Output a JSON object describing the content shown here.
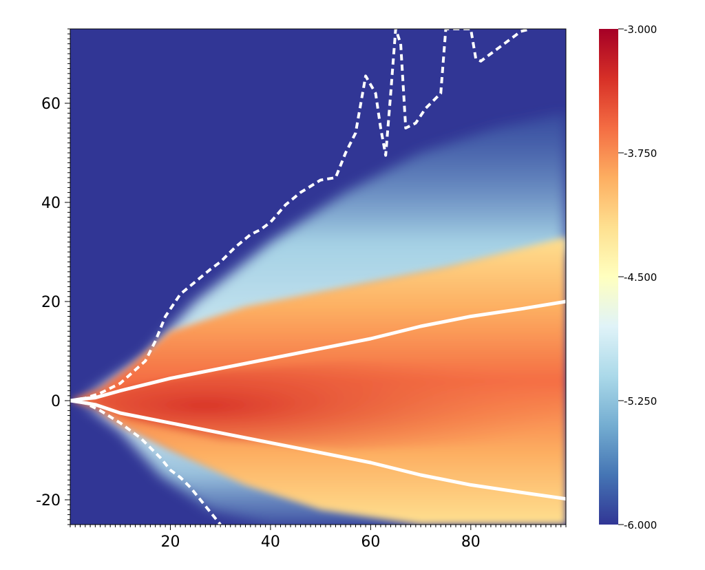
{
  "chart_data": {
    "type": "heatmap",
    "title": "",
    "xlabel": "",
    "ylabel": "",
    "xlim": [
      0,
      99
    ],
    "ylim": [
      -25,
      75
    ],
    "x_ticks": [
      20,
      40,
      60,
      80
    ],
    "x_tick_labels": [
      "20",
      "40",
      "60",
      "80"
    ],
    "y_ticks": [
      -20,
      0,
      20,
      40,
      60
    ],
    "y_tick_labels": [
      "-20",
      "0",
      "20",
      "40",
      "60"
    ],
    "grid": false,
    "colorbar": {
      "min": -6.0,
      "max": -3.0,
      "ticks": [
        -6.0,
        -5.25,
        -4.5,
        -3.75,
        -3.0
      ],
      "tick_labels": [
        "-6.000",
        "-5.250",
        "-4.500",
        "-3.750",
        "-3.000"
      ],
      "colormap": "diverging blue-white-red",
      "colors": [
        "#313695",
        "#4575b4",
        "#74add1",
        "#abd9e9",
        "#e0f3f8",
        "#ffffbf",
        "#fee090",
        "#fdae61",
        "#f46d43",
        "#d73027",
        "#a50026"
      ]
    },
    "background_color": "#313695",
    "series": [
      {
        "style": "solid",
        "color": "#ffffff",
        "x": [
          0,
          2,
          5,
          10,
          20,
          30,
          40,
          50,
          60,
          70,
          80,
          90,
          99
        ],
        "y": [
          0,
          0.3,
          0.6,
          2.0,
          4.5,
          6.5,
          8.5,
          10.5,
          12.5,
          15.0,
          17.0,
          18.5,
          20.0
        ]
      },
      {
        "style": "solid",
        "color": "#ffffff",
        "x": [
          0,
          2,
          5,
          10,
          20,
          30,
          40,
          50,
          60,
          70,
          80,
          90,
          99
        ],
        "y": [
          0,
          -0.3,
          -0.8,
          -2.5,
          -4.5,
          -6.5,
          -8.5,
          -10.5,
          -12.5,
          -15.0,
          -17.0,
          -18.5,
          -19.8
        ]
      },
      {
        "style": "dashed",
        "color": "#ffffff",
        "x": [
          0,
          3,
          6,
          10,
          15,
          17,
          19,
          22,
          25,
          28,
          30,
          33,
          36,
          38,
          40,
          43,
          46,
          50,
          53,
          55,
          57,
          59,
          61,
          62,
          63,
          64,
          65,
          66,
          67,
          69,
          71,
          73,
          74,
          75,
          80,
          81,
          82,
          84,
          86,
          88,
          90,
          92
        ],
        "y": [
          0,
          0.5,
          1.5,
          3.5,
          8.0,
          12.0,
          17.0,
          21.5,
          24.0,
          26.5,
          28.0,
          31.0,
          33.5,
          34.5,
          36.0,
          39.5,
          42.0,
          44.5,
          45.0,
          50.0,
          54.0,
          65.5,
          62.0,
          55.0,
          49.5,
          62.0,
          75.0,
          72.0,
          55.0,
          56.0,
          59.0,
          61.0,
          62.0,
          75.0,
          75.0,
          69.0,
          68.5,
          70.0,
          71.5,
          73.0,
          74.5,
          75.0
        ]
      },
      {
        "style": "dashed",
        "color": "#ffffff",
        "x": [
          0,
          3,
          6,
          10,
          14,
          16,
          18,
          20,
          22,
          24,
          26,
          28,
          30
        ],
        "y": [
          0,
          -0.5,
          -2.0,
          -4.5,
          -7.5,
          -9.5,
          -11.5,
          -14.0,
          -15.5,
          -17.5,
          -20.0,
          -22.5,
          -25.0
        ]
      }
    ]
  }
}
